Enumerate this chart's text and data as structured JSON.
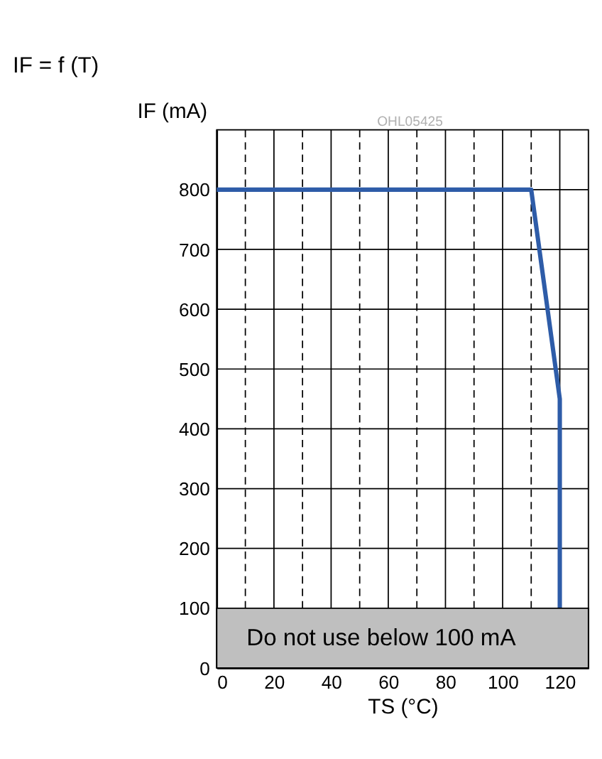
{
  "chart_data": {
    "type": "line",
    "title": "IF = f (T)",
    "xlabel": "TS (°C)",
    "ylabel": "IF (mA)",
    "annotations": [
      "OHL05425"
    ],
    "x": [
      0,
      110,
      120,
      120
    ],
    "series": [
      {
        "color": "#2e5ca8",
        "values": [
          800,
          800,
          450,
          100
        ]
      }
    ],
    "xlim": [
      0,
      130
    ],
    "ylim": [
      0,
      900
    ],
    "xticks": [
      0,
      {
        "value": 10,
        "label": null
      },
      20,
      {
        "value": 30,
        "label": null
      },
      40,
      {
        "value": 50,
        "label": null
      },
      60,
      {
        "value": 70,
        "label": null
      },
      80,
      {
        "value": 90,
        "label": null
      },
      100,
      {
        "value": 110,
        "label": null
      },
      120
    ],
    "yticks": [
      0,
      100,
      200,
      300,
      400,
      500,
      600,
      700,
      800
    ],
    "bands": [
      {
        "axis": "y",
        "from": 0,
        "to": 100,
        "label": "Do not use below 100 mA",
        "color": "#bfbfbf"
      }
    ],
    "grid": true,
    "marker": "none",
    "line_style": "solid"
  }
}
